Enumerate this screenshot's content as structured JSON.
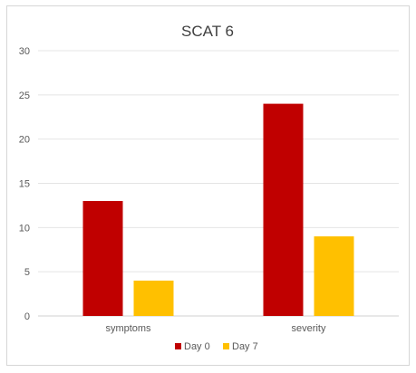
{
  "chart_data": {
    "type": "bar",
    "title": "SCAT 6",
    "xlabel": "",
    "ylabel": "",
    "categories": [
      "symptoms",
      "severity"
    ],
    "series": [
      {
        "name": "Day 0",
        "color": "#c00000",
        "values": [
          13,
          24
        ]
      },
      {
        "name": "Day 7",
        "color": "#ffc000",
        "values": [
          4,
          9
        ]
      }
    ],
    "ylim": [
      0,
      30
    ],
    "yticks": [
      "0",
      "5",
      "10",
      "15",
      "20",
      "25",
      "30"
    ],
    "grid": true,
    "legend": "bottom"
  }
}
